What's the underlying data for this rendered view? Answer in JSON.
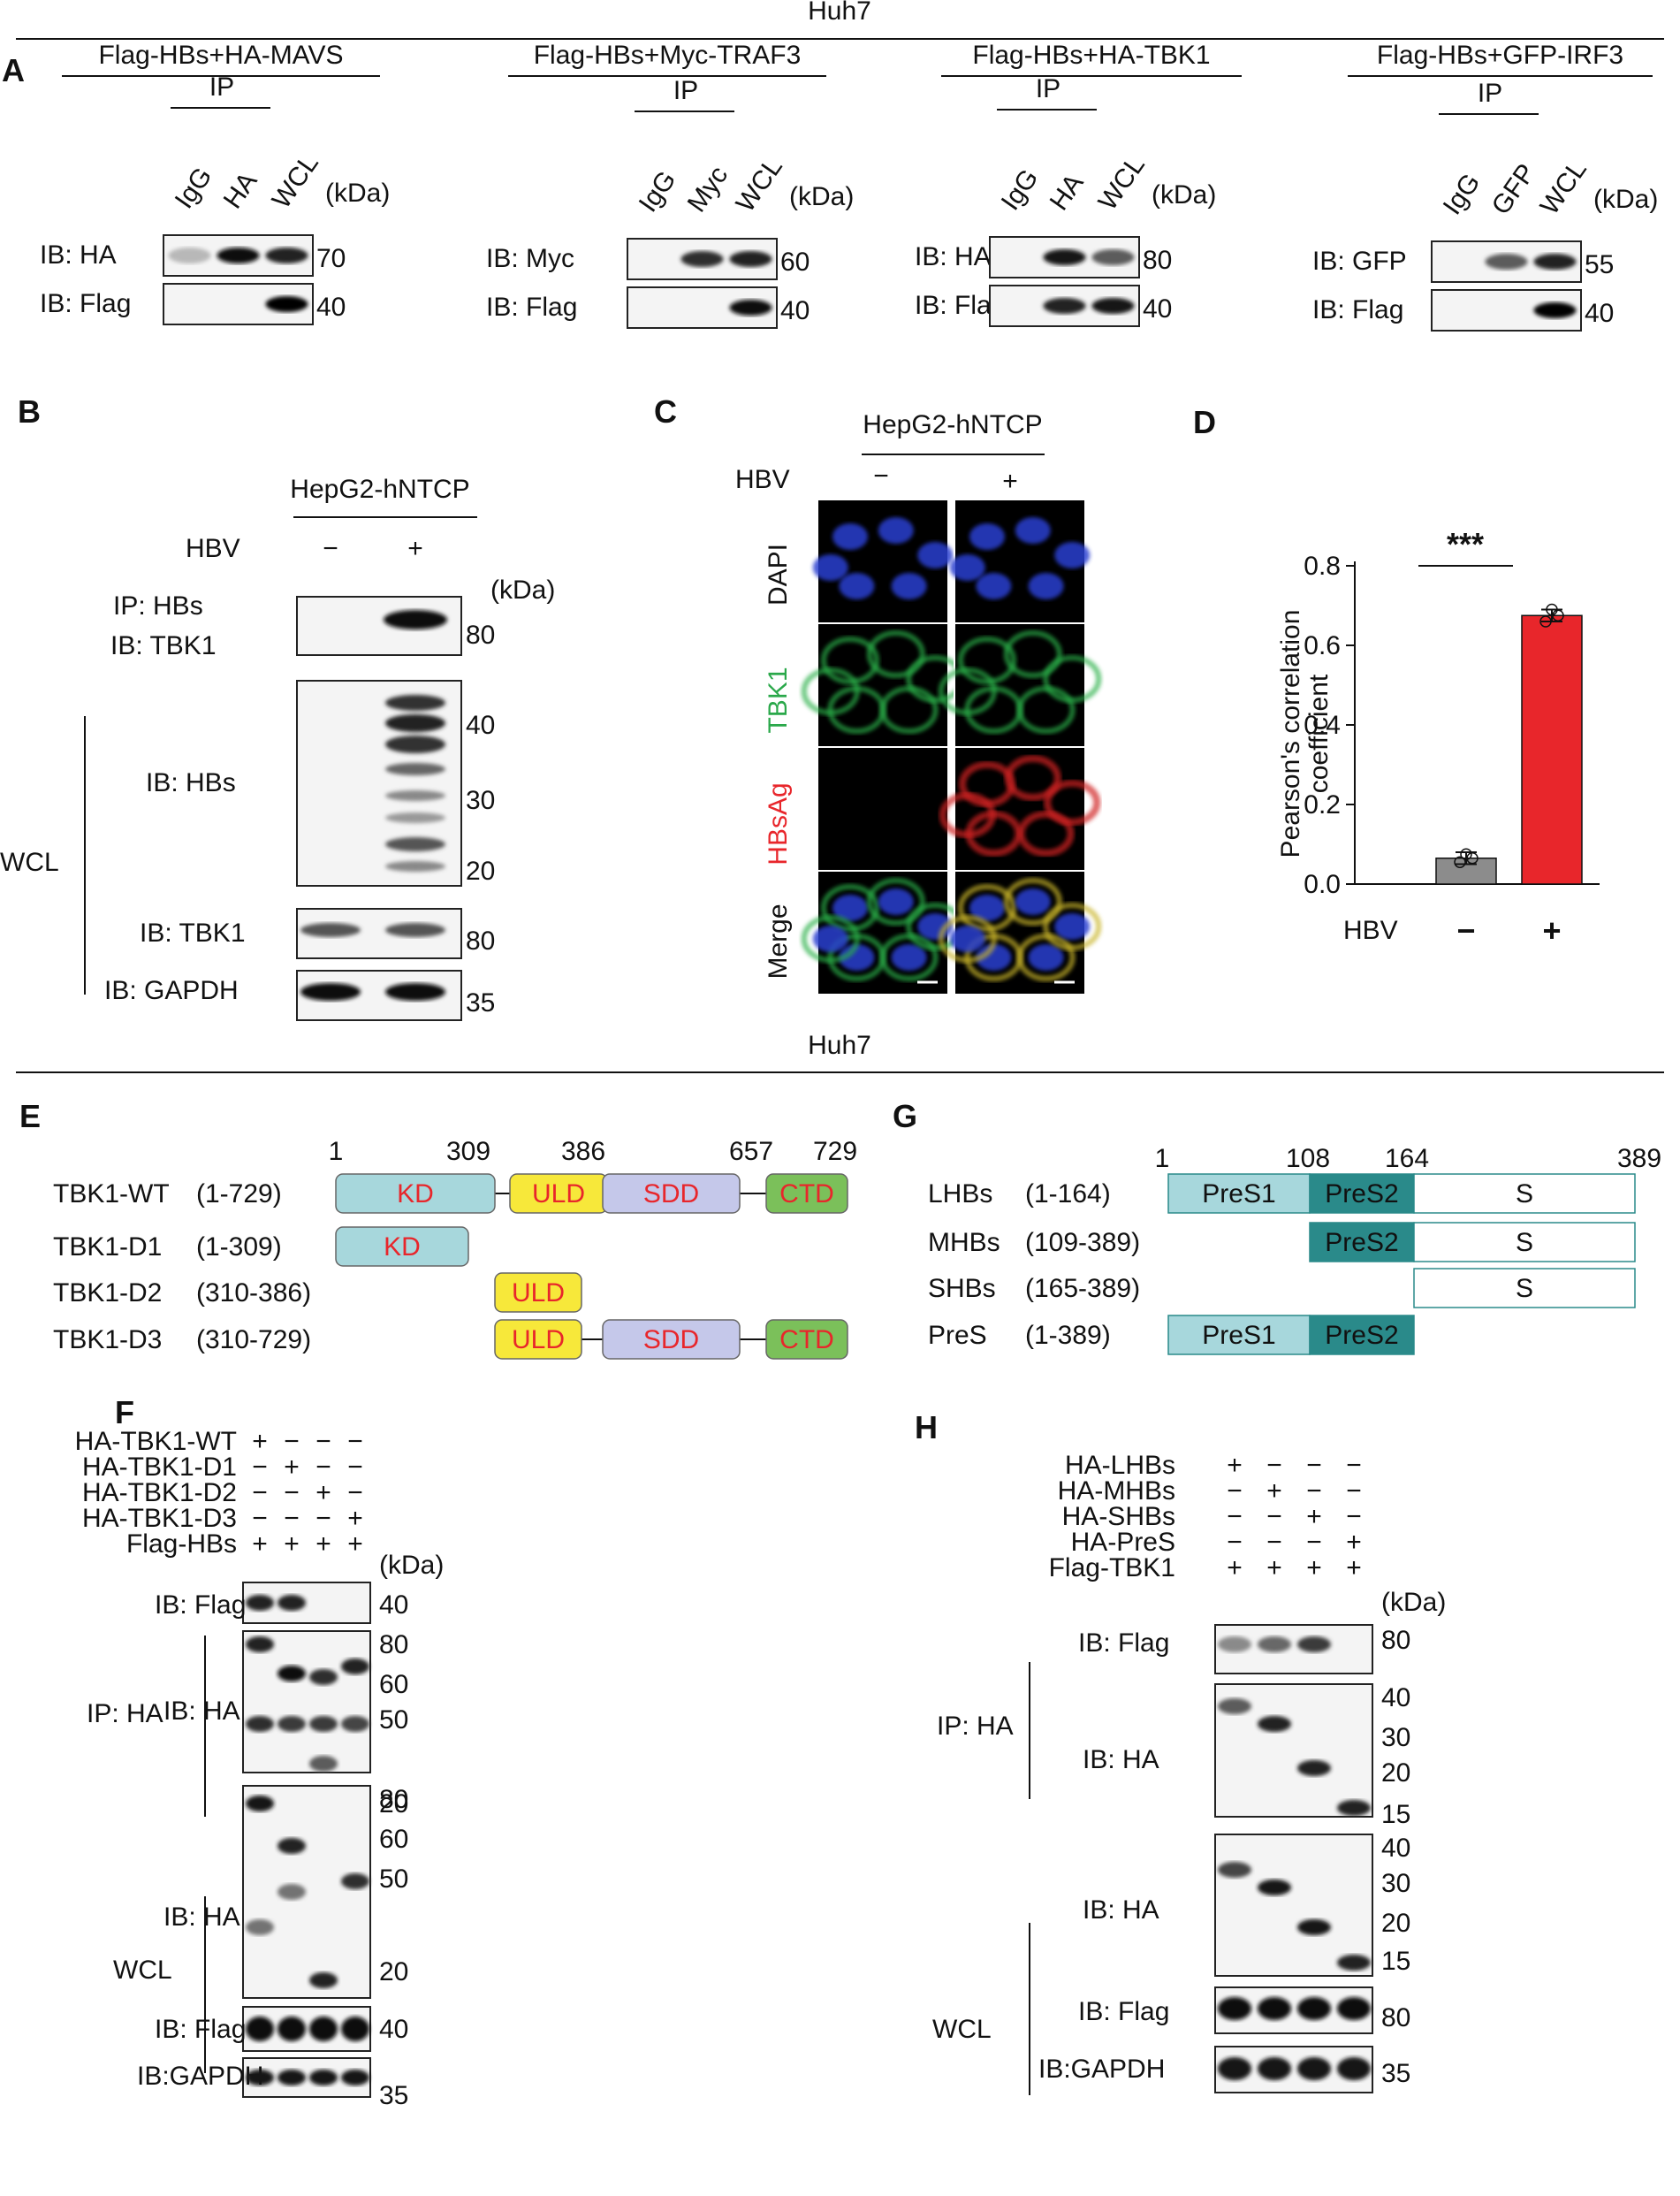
{
  "cell_line_top": "Huh7",
  "cell_line_mid": "Huh7",
  "panel_labels": {
    "A": "A",
    "B": "B",
    "C": "C",
    "D": "D",
    "E": "E",
    "F": "F",
    "G": "G",
    "H": "H"
  },
  "panelA": {
    "blocks": [
      {
        "title": "Flag-HBs+HA-MAVS",
        "ip": "IP",
        "lanes": [
          "IgG",
          "HA",
          "WCL"
        ],
        "kda": "(kDa)",
        "rows": [
          {
            "label": "IB: HA",
            "marker": "70"
          },
          {
            "label": "IB: Flag",
            "marker": "40"
          }
        ]
      },
      {
        "title": "Flag-HBs+Myc-TRAF3",
        "ip": "IP",
        "lanes": [
          "IgG",
          "Myc",
          "WCL"
        ],
        "kda": "(kDa)",
        "rows": [
          {
            "label": "IB: Myc",
            "marker": "60"
          },
          {
            "label": "IB: Flag",
            "marker": "40"
          }
        ]
      },
      {
        "title": "Flag-HBs+HA-TBK1",
        "ip": "IP",
        "lanes": [
          "IgG",
          "HA",
          "WCL"
        ],
        "kda": "(kDa)",
        "rows": [
          {
            "label": "IB: HA",
            "marker": "80"
          },
          {
            "label": "IB: Flag",
            "marker": "40"
          }
        ]
      },
      {
        "title": "Flag-HBs+GFP-IRF3",
        "ip": "IP",
        "lanes": [
          "IgG",
          "GFP",
          "WCL"
        ],
        "kda": "(kDa)",
        "rows": [
          {
            "label": "IB: GFP",
            "marker": "55"
          },
          {
            "label": "IB: Flag",
            "marker": "40"
          }
        ]
      }
    ]
  },
  "panelB": {
    "cell": "HepG2-hNTCP",
    "hbv": "HBV",
    "minus": "−",
    "plus": "+",
    "kda": "(kDa)",
    "ip_label1": "IP:  HBs",
    "ip_label2": "IB: TBK1",
    "ip_marker": "80",
    "wcl": "WCL",
    "ib_hbs": "IB: HBs",
    "hbs_markers": [
      "40",
      "30",
      "20"
    ],
    "ib_tbk1": "IB: TBK1",
    "tbk1_marker": "80",
    "ib_gapdh": "IB: GAPDH",
    "gapdh_marker": "35"
  },
  "panelC": {
    "cell": "HepG2-hNTCP",
    "hbv": "HBV",
    "minus": "−",
    "plus": "+",
    "rows": [
      "DAPI",
      "TBK1",
      "HBsAg",
      "Merge"
    ]
  },
  "panelD": {
    "hbv": "HBV",
    "sig": "***",
    "chart_data": {
      "type": "bar",
      "categories": [
        "−",
        "+"
      ],
      "values": [
        0.065,
        0.675
      ],
      "points": [
        [
          0.055,
          0.075,
          0.065
        ],
        [
          0.66,
          0.69,
          0.675
        ]
      ],
      "ylabel": "Pearson's correlation coefficient",
      "ylabel_lines": [
        "Pearson's correlation",
        "coefficient"
      ],
      "ylim": [
        0,
        0.8
      ],
      "yticks": [
        "0.0",
        "0.2",
        "0.4",
        "0.6",
        "0.8"
      ],
      "colors": [
        "#8c8c8c",
        "#e8262b"
      ]
    }
  },
  "panelE": {
    "positions": [
      "1",
      "309",
      "386",
      "657",
      "729"
    ],
    "constructs": [
      {
        "name": "TBK1-WT",
        "range": "(1-729)"
      },
      {
        "name": "TBK1-D1",
        "range": "(1-309)"
      },
      {
        "name": "TBK1-D2",
        "range": "(310-386)"
      },
      {
        "name": "TBK1-D3",
        "range": "(310-729)"
      }
    ],
    "domains": {
      "kd": "KD",
      "uld": "ULD",
      "sdd": "SDD",
      "ctd": "CTD"
    },
    "colors": {
      "kd": "#a7d7dc",
      "uld": "#f7e83a",
      "sdd": "#c5c8ea",
      "ctd": "#7bc05a"
    }
  },
  "panelG": {
    "positions": [
      "1",
      "108",
      "164",
      "389"
    ],
    "constructs": [
      {
        "name": "LHBs",
        "range": "(1-164)"
      },
      {
        "name": "MHBs",
        "range": "(109-389)"
      },
      {
        "name": "SHBs",
        "range": "(165-389)"
      },
      {
        "name": "PreS",
        "range": "(1-389)"
      }
    ],
    "domains": {
      "pres1": "PreS1",
      "pres2": "PreS2",
      "s": "S"
    },
    "colors": {
      "pres1": "#a7d7dc",
      "pres2": "#2a8a8a"
    }
  },
  "panelF": {
    "conditions": [
      {
        "label": "HA-TBK1-WT",
        "signs": [
          "+",
          "−",
          "−",
          "−"
        ]
      },
      {
        "label": "HA-TBK1-D1",
        "signs": [
          "−",
          "+",
          "−",
          "−"
        ]
      },
      {
        "label": "HA-TBK1-D2",
        "signs": [
          "−",
          "−",
          "+",
          "−"
        ]
      },
      {
        "label": "HA-TBK1-D3",
        "signs": [
          "−",
          "−",
          "−",
          "+"
        ]
      },
      {
        "label": "Flag-HBs",
        "signs": [
          "+",
          "+",
          "+",
          "+"
        ]
      }
    ],
    "kda": "(kDa)",
    "ip": "IP: HA",
    "wcl": "WCL",
    "ib_flag": "IB: Flag",
    "ib_ha": "IB: HA",
    "ib_gapdh": "IB:GAPDH",
    "m_flag": "40",
    "m_ha": [
      "80",
      "60",
      "50",
      "20"
    ],
    "m_wha": [
      "80",
      "60",
      "50",
      "20"
    ],
    "m_wflag": "40",
    "m_gapdh": "35"
  },
  "panelH": {
    "conditions": [
      {
        "label": "HA-LHBs",
        "signs": [
          "+",
          "−",
          "−",
          "−"
        ]
      },
      {
        "label": "HA-MHBs",
        "signs": [
          "−",
          "+",
          "−",
          "−"
        ]
      },
      {
        "label": "HA-SHBs",
        "signs": [
          "−",
          "−",
          "+",
          "−"
        ]
      },
      {
        "label": "HA-PreS",
        "signs": [
          "−",
          "−",
          "−",
          "+"
        ]
      },
      {
        "label": "Flag-TBK1",
        "signs": [
          "+",
          "+",
          "+",
          "+"
        ]
      }
    ],
    "kda": "(kDa)",
    "ip": "IP: HA",
    "wcl": "WCL",
    "ib_flag": "IB: Flag",
    "ib_ha": "IB: HA",
    "ib_gapdh": "IB:GAPDH",
    "m_flag": "80",
    "m_ha": [
      "40",
      "30",
      "20",
      "15"
    ],
    "m_wha": [
      "40",
      "30",
      "20",
      "15"
    ],
    "m_wflag": "80",
    "m_gapdh": "35"
  }
}
